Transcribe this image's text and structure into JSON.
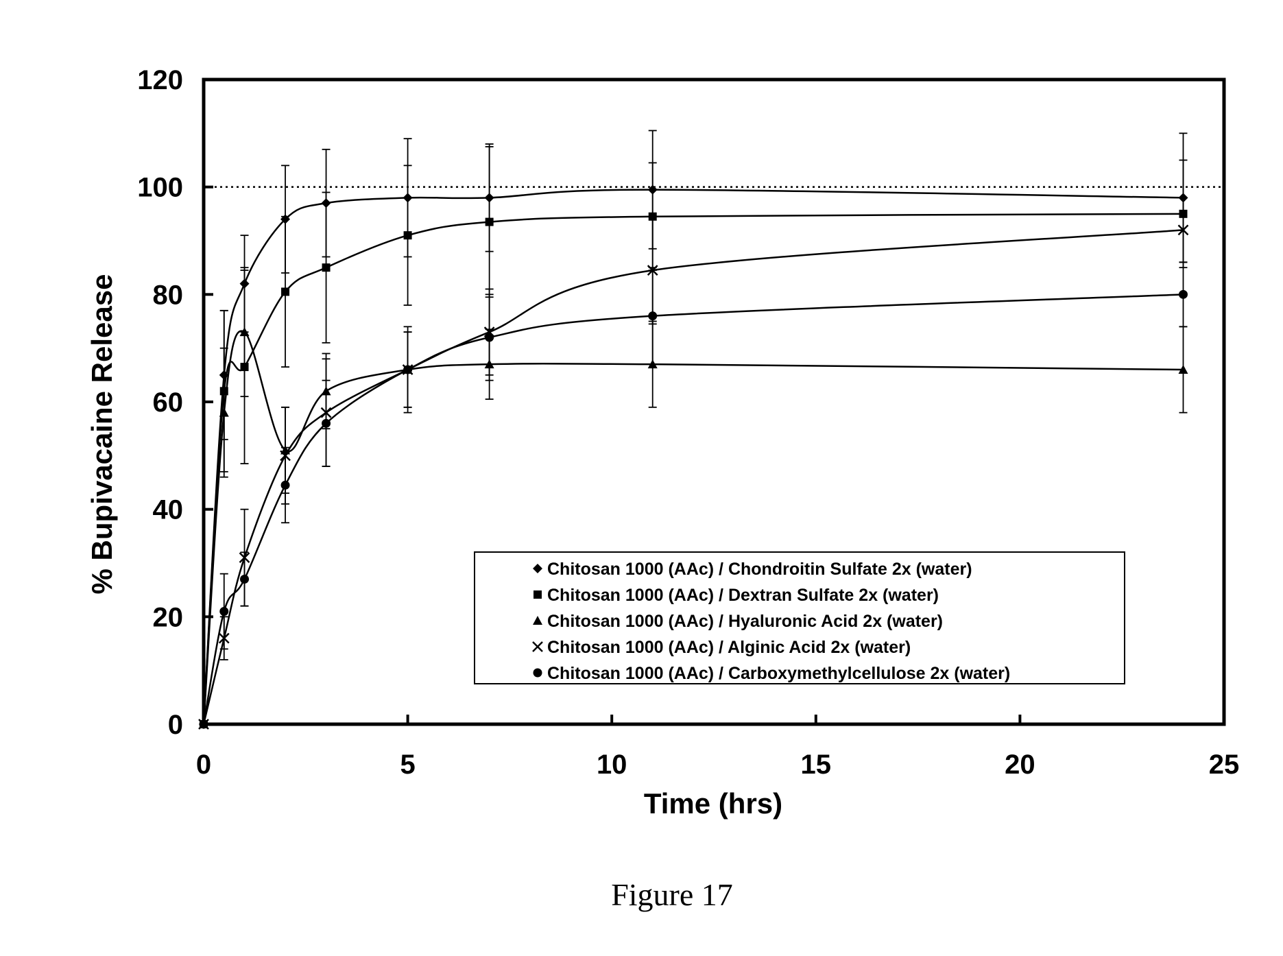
{
  "chart_data": {
    "type": "scatter",
    "xlabel": "Time (hrs)",
    "ylabel": "% Bupivacaine Release",
    "xlim": [
      0,
      25
    ],
    "ylim": [
      0,
      120
    ],
    "xticks": [
      0,
      5,
      10,
      15,
      20,
      25
    ],
    "yticks": [
      0,
      20,
      40,
      60,
      80,
      100,
      120
    ],
    "reference_line": {
      "y": 100,
      "style": "dotted"
    },
    "grid": false,
    "legend_position": "bottom-right",
    "caption": "Figure 17",
    "series": [
      {
        "name": "Chitosan 1000 (AAc) / Chondroitin Sulfate 2x (water)",
        "marker": "diamond",
        "x": [
          0,
          0.5,
          1,
          2,
          3,
          5,
          7,
          11,
          24
        ],
        "y": [
          0,
          65,
          82,
          94,
          97,
          98,
          98,
          99.5,
          98
        ],
        "err": [
          0,
          12,
          9,
          10,
          10,
          11,
          10,
          11,
          12
        ]
      },
      {
        "name": "Chitosan 1000 (AAc) / Dextran Sulfate 2x (water)",
        "marker": "square",
        "x": [
          0,
          0.5,
          1,
          2,
          3,
          5,
          7,
          11,
          24
        ],
        "y": [
          0,
          62,
          66.5,
          80.5,
          85,
          91,
          93.5,
          94.5,
          95
        ],
        "err": [
          0,
          15,
          18,
          14,
          14,
          13,
          14,
          10,
          10
        ]
      },
      {
        "name": "Chitosan 1000 (AAc) / Hyaluronic Acid 2x (water)",
        "marker": "triangle",
        "x": [
          0,
          0.5,
          1,
          2,
          3,
          5,
          7,
          11,
          24
        ],
        "y": [
          0,
          58,
          73,
          51,
          62,
          66,
          67,
          67,
          66
        ],
        "err": [
          0,
          12,
          12,
          8,
          7,
          7,
          6.5,
          8,
          8
        ]
      },
      {
        "name": "Chitosan 1000 (AAc) / Alginic Acid 2x (water)",
        "marker": "x",
        "x": [
          0,
          0.5,
          1,
          2,
          3,
          5,
          7,
          11,
          24
        ],
        "y": [
          0,
          16,
          31,
          50,
          58,
          66,
          73,
          84.5,
          92
        ],
        "err": [
          0,
          4,
          9,
          9,
          10,
          8,
          8,
          10,
          6
        ]
      },
      {
        "name": "Chitosan 1000 (AAc) / Carboxymethylcellulose 2x (water)",
        "marker": "circle",
        "x": [
          0,
          0.5,
          1,
          2,
          3,
          5,
          7,
          11,
          24
        ],
        "y": [
          0,
          21,
          27,
          44.5,
          56,
          66,
          72,
          76,
          80
        ],
        "err": [
          0,
          7,
          5,
          7,
          8,
          7,
          8,
          9,
          6
        ]
      }
    ]
  }
}
